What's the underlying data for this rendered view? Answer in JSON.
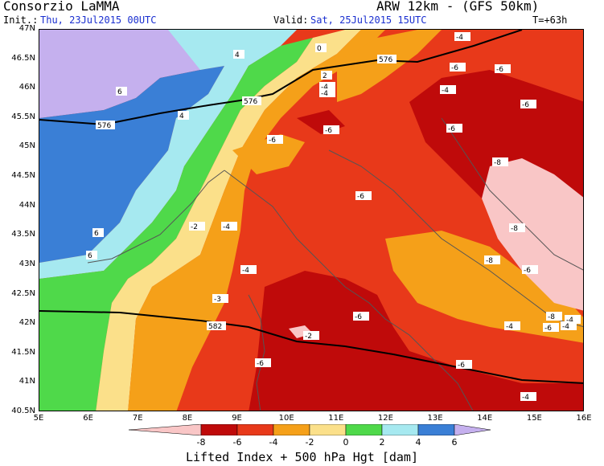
{
  "header": {
    "title": "Consorzio LaMMA",
    "model": "ARW 12km - (GFS 50km)",
    "init_label": "Init.:",
    "init_value": "Thu, 23Jul2015 00UTC",
    "valid_label": "Valid:",
    "valid_value": "Sat, 25Jul2015 15UTC",
    "lead_time": "T=+63h"
  },
  "axes": {
    "lat_labels": [
      "47N",
      "46.5N",
      "46N",
      "45.5N",
      "45N",
      "44.5N",
      "44N",
      "43.5N",
      "43N",
      "42.5N",
      "42N",
      "41.5N",
      "41N",
      "40.5N"
    ],
    "lon_labels": [
      "5E",
      "6E",
      "7E",
      "8E",
      "9E",
      "10E",
      "11E",
      "12E",
      "13E",
      "14E",
      "15E",
      "16E"
    ]
  },
  "colors": {
    "lt_-8": "#f9c6c6",
    "-8_-6": "#bf0a0a",
    "-6_-4": "#e8391a",
    "-4_-2": "#f5a019",
    "-2_0": "#fbe08a",
    "0_2": "#4fd94a",
    "2_4": "#a6e9f0",
    "4_6": "#3a7fd6",
    "gt_6": "#c5b0ee"
  },
  "map": {
    "contour_labels": [
      "-4",
      "-6",
      "-6",
      "-4",
      "-6",
      "-6",
      "-6",
      "-8",
      "-8",
      "-6",
      "-4",
      "-6",
      "-4",
      "-6",
      "-8",
      "-6",
      "-8",
      "-4",
      "-6",
      "-4",
      "-2",
      "-4",
      "-3",
      "-4",
      "-6",
      "-2",
      "-6",
      "-4",
      "-4",
      "4",
      "6",
      "4",
      "6",
      "6",
      "0",
      "2"
    ],
    "height_labels": [
      "576",
      "576",
      "576",
      "582"
    ]
  },
  "legend": {
    "ticks": [
      "-8",
      "-6",
      "-4",
      "-2",
      "0",
      "2",
      "4",
      "6"
    ],
    "title": "Lifted Index + 500 hPa Hgt [dam]"
  }
}
